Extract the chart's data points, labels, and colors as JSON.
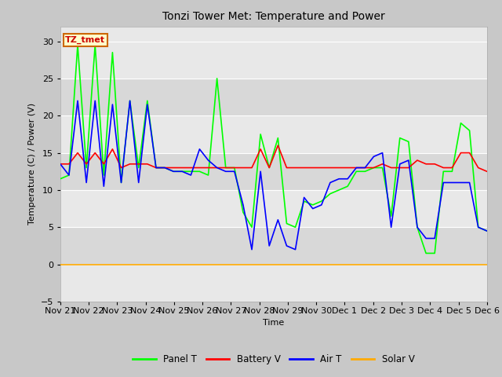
{
  "title": "Tonzi Tower Met: Temperature and Power",
  "xlabel": "Time",
  "ylabel": "Temperature (C) / Power (V)",
  "ylim": [
    -5,
    32
  ],
  "annotation_text": "TZ_tmet",
  "annotation_color": "#cc0000",
  "annotation_bg": "#ffffcc",
  "annotation_border": "#cc6600",
  "xtick_labels": [
    "Nov 21",
    "Nov 22",
    "Nov 23",
    "Nov 24",
    "Nov 25",
    "Nov 26",
    "Nov 27",
    "Nov 28",
    "Nov 29",
    "Nov 30",
    "Dec 1",
    "Dec 2",
    "Dec 3",
    "Dec 4",
    "Dec 5",
    "Dec 6"
  ],
  "legend_labels": [
    "Panel T",
    "Battery V",
    "Air T",
    "Solar V"
  ],
  "legend_colors": [
    "#00ff00",
    "#ff0000",
    "#0000ff",
    "#ffaa00"
  ],
  "outer_bg": "#c8c8c8",
  "plot_bg_light": "#e8e8e8",
  "plot_bg_dark": "#d8d8d8",
  "grid_color": "#ffffff",
  "panel_t": [
    11.5,
    12.0,
    29.5,
    13.0,
    29.5,
    12.0,
    28.5,
    11.0,
    22.0,
    13.0,
    22.0,
    13.0,
    13.0,
    12.5,
    12.5,
    12.5,
    12.5,
    12.0,
    25.0,
    13.0,
    13.0,
    7.0,
    5.0,
    17.5,
    13.0,
    17.0,
    5.5,
    5.0,
    8.5,
    8.0,
    8.5,
    9.5,
    10.0,
    10.5,
    12.5,
    12.5,
    13.0,
    13.0,
    6.5,
    17.0,
    16.5,
    5.0,
    1.5,
    1.5,
    12.5,
    12.5,
    19.0,
    18.0,
    5.0,
    4.5
  ],
  "battery_v": [
    13.5,
    13.5,
    15.0,
    13.5,
    15.0,
    13.5,
    15.5,
    13.0,
    13.5,
    13.5,
    13.5,
    13.0,
    13.0,
    13.0,
    13.0,
    13.0,
    13.0,
    13.0,
    13.0,
    13.0,
    13.0,
    13.0,
    13.0,
    15.5,
    13.0,
    16.0,
    13.0,
    13.0,
    13.0,
    13.0,
    13.0,
    13.0,
    13.0,
    13.0,
    13.0,
    13.0,
    13.0,
    13.5,
    13.0,
    13.0,
    13.0,
    14.0,
    13.5,
    13.5,
    13.0,
    13.0,
    15.0,
    15.0,
    13.0,
    12.5
  ],
  "air_t": [
    13.5,
    12.0,
    22.0,
    11.0,
    22.0,
    10.5,
    21.5,
    11.0,
    22.0,
    11.0,
    21.5,
    13.0,
    13.0,
    12.5,
    12.5,
    12.0,
    15.5,
    14.0,
    13.0,
    12.5,
    12.5,
    8.0,
    2.0,
    12.5,
    2.5,
    6.0,
    2.5,
    2.0,
    9.0,
    7.5,
    8.0,
    11.0,
    11.5,
    11.5,
    13.0,
    13.0,
    14.5,
    15.0,
    5.0,
    13.5,
    14.0,
    5.0,
    3.5,
    3.5,
    11.0,
    11.0,
    11.0,
    11.0,
    5.0,
    4.5
  ],
  "solar_v": [
    0.0,
    0.0,
    0.0,
    0.0,
    0.0,
    0.0,
    0.0,
    0.0,
    0.0,
    0.0,
    0.0,
    0.0,
    0.0,
    0.0,
    0.0,
    0.0,
    0.0,
    0.0,
    0.0,
    0.0,
    0.0,
    0.0,
    0.0,
    0.0,
    0.0,
    0.0,
    0.0,
    0.0,
    0.0,
    0.0,
    0.0,
    0.0,
    0.0,
    0.0,
    0.0,
    0.0,
    0.0,
    0.0,
    0.0,
    0.0,
    0.0,
    0.0,
    0.0,
    0.0,
    0.0,
    0.0,
    0.0,
    0.0,
    0.0,
    0.0
  ]
}
